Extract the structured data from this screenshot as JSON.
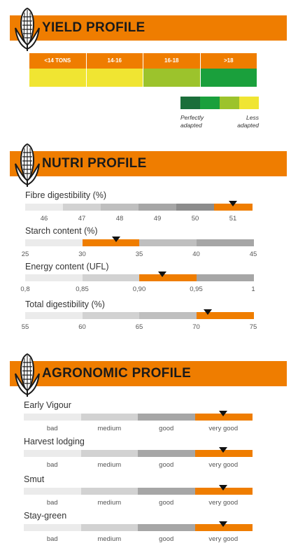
{
  "sections": {
    "yield": {
      "title": "YIELD PROFILE"
    },
    "nutri": {
      "title": "NUTRI PROFILE"
    },
    "agro": {
      "title": "AGRONOMIC PROFILE"
    }
  },
  "colors": {
    "orange": "#ef7d00",
    "yellow": "#f0e532",
    "light_green": "#9cc32c",
    "green": "#1aa03c",
    "dark_green": "#1b6e3a",
    "grey_1": "#ebebeb",
    "grey_2": "#d2d2d2",
    "grey_3": "#bfbfbf",
    "grey_4": "#a6a6a6",
    "grey_5": "#8c8c8c"
  },
  "chart_data": [
    {
      "type": "table",
      "title": "YIELD PROFILE",
      "categories": [
        "<14 TONS",
        "14-16",
        "16-18",
        ">18"
      ],
      "adaptation_colors": [
        "yellow",
        "yellow",
        "light_green",
        "green"
      ],
      "legend": {
        "scale_colors": [
          "dark_green",
          "green",
          "light_green",
          "yellow"
        ],
        "left_label": "Perfectly adapted",
        "right_label": "Less adapted",
        "left_lines": [
          "Perfectly",
          "adapted"
        ],
        "right_lines": [
          "Less",
          "adapted"
        ]
      }
    },
    {
      "type": "bar",
      "title": "NUTRI PROFILE",
      "metrics": [
        {
          "label": "Fibre digestibility (%)",
          "ticks": [
            "46",
            "47",
            "48",
            "49",
            "50",
            "51"
          ],
          "highlight_index": 5,
          "value": 51
        },
        {
          "label": "Starch content (%)",
          "ticks": [
            "25",
            "30",
            "35",
            "40",
            "45"
          ],
          "highlight_index": 1,
          "value": 33
        },
        {
          "label": "Energy content (UFL)",
          "ticks": [
            "0,8",
            "0,85",
            "0,90",
            "0,95",
            "1"
          ],
          "highlight_index": 2,
          "value": 0.92
        },
        {
          "label": "Total digestibility (%)",
          "ticks": [
            "55",
            "60",
            "65",
            "70",
            "75"
          ],
          "highlight_index": 3,
          "value": 71
        }
      ]
    },
    {
      "type": "bar",
      "title": "AGRONOMIC PROFILE",
      "scale": [
        "bad",
        "medium",
        "good",
        "very good"
      ],
      "metrics": [
        {
          "label": "Early Vigour",
          "rating": "very good",
          "rating_index": 3
        },
        {
          "label": "Harvest lodging",
          "rating": "very good",
          "rating_index": 3
        },
        {
          "label": "Smut",
          "rating": "very good",
          "rating_index": 3
        },
        {
          "label": "Stay-green",
          "rating": "very good",
          "rating_index": 3
        }
      ]
    }
  ]
}
